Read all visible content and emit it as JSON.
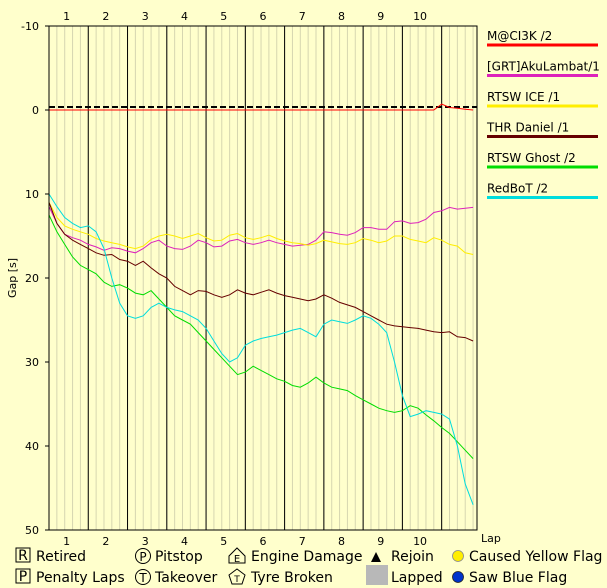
{
  "chart_data": {
    "type": "line",
    "ylabel": "Gap [s]",
    "xlabel": "Lap",
    "ylim": [
      -10,
      50
    ],
    "y_inverted": true,
    "y_ticks": [
      -10,
      0,
      10,
      20,
      30,
      40,
      50
    ],
    "lap_ticks": [
      "1",
      "2",
      "3",
      "4",
      "5",
      "6",
      "7",
      "8",
      "9",
      "10"
    ],
    "xlim": [
      0,
      10.9
    ],
    "grid": true,
    "legend_position": "right",
    "series": [
      {
        "name": "M@CI3K /2",
        "color": "#ff0000",
        "x": [
          0,
          0.3,
          0.5,
          0.7,
          0.9,
          1.0,
          1.2,
          1.4,
          1.6,
          1.8,
          2.0,
          2.2,
          2.4,
          2.6,
          2.8,
          3.0,
          3.2,
          3.4,
          3.6,
          3.8,
          4.0,
          4.2,
          4.4,
          4.6,
          4.8,
          5.0,
          5.2,
          5.4,
          5.6,
          5.8,
          6.0,
          6.2,
          6.4,
          6.6,
          6.8,
          7.0,
          7.2,
          7.4,
          7.6,
          7.8,
          8.0,
          8.2,
          8.4,
          8.6,
          8.8,
          9.0,
          9.2,
          9.4,
          9.6,
          9.8,
          10.0,
          10.2,
          10.4,
          10.6,
          10.8
        ],
        "y": [
          0,
          0,
          0,
          0,
          0,
          0,
          0,
          0,
          0,
          0,
          0,
          0,
          0,
          0,
          0,
          0,
          0,
          0,
          0,
          0,
          0,
          0,
          0,
          0,
          0,
          0,
          0,
          0,
          0,
          0,
          0,
          0,
          0,
          0,
          0,
          0,
          0,
          0,
          0,
          0,
          0,
          0,
          0,
          0,
          0,
          0,
          0,
          0,
          0,
          0,
          -0.7,
          -0.3,
          -0.2,
          -0.1,
          0
        ]
      },
      {
        "name": "[GRT]AkuLambat/1",
        "color": "#dd22bb",
        "x": [
          0,
          0.2,
          0.4,
          0.6,
          0.8,
          1.0,
          1.2,
          1.4,
          1.6,
          1.8,
          2.0,
          2.2,
          2.4,
          2.6,
          2.8,
          3.0,
          3.2,
          3.4,
          3.6,
          3.8,
          4.0,
          4.2,
          4.4,
          4.6,
          4.8,
          5.0,
          5.2,
          5.4,
          5.6,
          5.8,
          6.0,
          6.2,
          6.4,
          6.6,
          6.8,
          7.0,
          7.2,
          7.4,
          7.6,
          7.8,
          8.0,
          8.2,
          8.4,
          8.6,
          8.8,
          9.0,
          9.2,
          9.4,
          9.6,
          9.8,
          10.0,
          10.2,
          10.4,
          10.6,
          10.8
        ],
        "y": [
          11.5,
          13.5,
          14.8,
          15.2,
          15.5,
          16.0,
          16.3,
          16.7,
          16.4,
          16.5,
          16.8,
          17.0,
          16.5,
          15.8,
          15.5,
          16.2,
          16.5,
          16.6,
          16.2,
          15.5,
          15.8,
          16.3,
          16.2,
          15.6,
          15.4,
          15.8,
          16.0,
          15.8,
          15.5,
          15.8,
          16.0,
          16.2,
          16.1,
          16.0,
          15.5,
          14.5,
          14.6,
          14.8,
          14.9,
          14.6,
          14.0,
          14.0,
          14.2,
          14.2,
          13.3,
          13.2,
          13.5,
          13.4,
          13.0,
          12.2,
          12.0,
          11.6,
          11.8,
          11.7,
          11.6
        ]
      },
      {
        "name": "RTSW ICE /1",
        "color": "#ffee00",
        "x": [
          0,
          0.2,
          0.4,
          0.6,
          0.8,
          1.0,
          1.2,
          1.4,
          1.6,
          1.8,
          2.0,
          2.2,
          2.4,
          2.6,
          2.8,
          3.0,
          3.2,
          3.4,
          3.6,
          3.8,
          4.0,
          4.2,
          4.4,
          4.6,
          4.8,
          5.0,
          5.2,
          5.4,
          5.6,
          5.8,
          6.0,
          6.2,
          6.4,
          6.6,
          6.8,
          7.0,
          7.2,
          7.4,
          7.6,
          7.8,
          8.0,
          8.2,
          8.4,
          8.6,
          8.8,
          9.0,
          9.2,
          9.4,
          9.6,
          9.8,
          10.0,
          10.2,
          10.4,
          10.6,
          10.8
        ],
        "y": [
          11.0,
          12.8,
          13.8,
          14.2,
          14.5,
          14.8,
          15.3,
          15.6,
          15.8,
          16.0,
          16.3,
          16.5,
          16.2,
          15.4,
          15.0,
          14.8,
          15.0,
          15.3,
          15.0,
          14.7,
          15.2,
          15.6,
          15.5,
          14.9,
          14.7,
          15.2,
          15.4,
          15.2,
          14.9,
          15.3,
          15.6,
          15.8,
          15.9,
          16.1,
          15.9,
          15.5,
          15.7,
          15.9,
          16.0,
          15.8,
          15.3,
          15.5,
          15.8,
          15.6,
          15.0,
          15.0,
          15.4,
          15.6,
          15.8,
          15.2,
          15.5,
          16.0,
          16.2,
          17.0,
          17.2
        ]
      },
      {
        "name": "THR Daniel /1",
        "color": "#660000",
        "x": [
          0,
          0.2,
          0.4,
          0.6,
          0.8,
          1.0,
          1.2,
          1.4,
          1.6,
          1.8,
          2.0,
          2.2,
          2.4,
          2.6,
          2.8,
          3.0,
          3.2,
          3.4,
          3.6,
          3.8,
          4.0,
          4.2,
          4.4,
          4.6,
          4.8,
          5.0,
          5.2,
          5.4,
          5.6,
          5.8,
          6.0,
          6.2,
          6.4,
          6.6,
          6.8,
          7.0,
          7.2,
          7.4,
          7.6,
          7.8,
          8.0,
          8.2,
          8.4,
          8.6,
          8.8,
          9.0,
          9.2,
          9.4,
          9.6,
          9.8,
          10.0,
          10.2,
          10.4,
          10.6,
          10.8
        ],
        "y": [
          11.0,
          13.5,
          14.8,
          15.5,
          16.0,
          16.5,
          17.0,
          17.3,
          17.2,
          17.8,
          18.0,
          18.5,
          18.0,
          18.8,
          19.5,
          20.0,
          21.0,
          21.5,
          22.0,
          21.5,
          21.6,
          22.0,
          22.3,
          22.0,
          21.4,
          21.8,
          22.0,
          21.7,
          21.4,
          21.8,
          22.1,
          22.3,
          22.5,
          22.7,
          22.5,
          22.0,
          22.4,
          22.9,
          23.2,
          23.5,
          24.0,
          24.5,
          25.0,
          25.5,
          25.7,
          25.8,
          25.9,
          26.0,
          26.2,
          26.4,
          26.5,
          26.4,
          27.0,
          27.1,
          27.5
        ]
      },
      {
        "name": "RTSW Ghost /2",
        "color": "#00dd00",
        "x": [
          0,
          0.2,
          0.4,
          0.6,
          0.8,
          1.0,
          1.2,
          1.4,
          1.6,
          1.8,
          2.0,
          2.2,
          2.4,
          2.6,
          2.8,
          3.0,
          3.2,
          3.4,
          3.6,
          3.8,
          4.0,
          4.2,
          4.4,
          4.6,
          4.8,
          5.0,
          5.2,
          5.4,
          5.6,
          5.8,
          6.0,
          6.2,
          6.4,
          6.6,
          6.8,
          7.0,
          7.2,
          7.4,
          7.6,
          7.8,
          8.0,
          8.2,
          8.4,
          8.6,
          8.8,
          9.0,
          9.2,
          9.4,
          9.6,
          9.8,
          10.0,
          10.2,
          10.4,
          10.6,
          10.8
        ],
        "y": [
          12.5,
          14.5,
          16.0,
          17.5,
          18.5,
          19.0,
          19.5,
          20.5,
          21.0,
          20.8,
          21.2,
          21.8,
          22.0,
          21.5,
          22.5,
          23.5,
          24.5,
          25.0,
          25.5,
          26.5,
          27.5,
          28.5,
          29.5,
          30.5,
          31.5,
          31.2,
          30.5,
          31.0,
          31.5,
          32.0,
          32.3,
          32.8,
          33.0,
          32.5,
          31.8,
          32.5,
          33.0,
          33.2,
          33.4,
          34.0,
          34.5,
          35.0,
          35.5,
          35.8,
          36.0,
          35.8,
          35.2,
          35.5,
          36.3,
          37.0,
          37.8,
          38.5,
          39.5,
          40.5,
          41.5
        ]
      },
      {
        "name": "RedBoT /2",
        "color": "#00dddd",
        "x": [
          0,
          0.2,
          0.4,
          0.6,
          0.8,
          1.0,
          1.2,
          1.4,
          1.6,
          1.8,
          2.0,
          2.2,
          2.4,
          2.6,
          2.8,
          3.0,
          3.2,
          3.4,
          3.6,
          3.8,
          4.0,
          4.2,
          4.4,
          4.6,
          4.8,
          5.0,
          5.2,
          5.4,
          5.6,
          5.8,
          6.0,
          6.2,
          6.4,
          6.6,
          6.8,
          7.0,
          7.2,
          7.4,
          7.6,
          7.8,
          8.0,
          8.2,
          8.4,
          8.6,
          8.8,
          9.0,
          9.2,
          9.4,
          9.6,
          9.8,
          10.0,
          10.2,
          10.4,
          10.6,
          10.8
        ],
        "y": [
          10.0,
          11.5,
          12.8,
          13.5,
          14.0,
          13.8,
          14.5,
          16.5,
          20.0,
          23.0,
          24.5,
          24.8,
          24.5,
          23.5,
          23.0,
          23.5,
          23.8,
          24.0,
          24.5,
          25.0,
          26.0,
          27.5,
          29.0,
          30.0,
          29.5,
          28.0,
          27.5,
          27.2,
          27.0,
          26.8,
          26.5,
          26.2,
          26.0,
          26.5,
          27.0,
          25.5,
          25.0,
          25.2,
          25.4,
          25.0,
          24.5,
          24.8,
          25.5,
          26.5,
          30.0,
          34.0,
          36.5,
          36.2,
          35.8,
          36.0,
          36.2,
          36.8,
          40.0,
          44.5,
          47.0
        ]
      }
    ]
  },
  "legend_key": {
    "retired": {
      "glyph": "R",
      "label": "Retired"
    },
    "penalty": {
      "glyph": "P",
      "label": "Penalty Laps"
    },
    "pitstop": {
      "glyph": "P",
      "label": "Pitstop"
    },
    "takeover": {
      "glyph": "T",
      "label": "Takeover"
    },
    "engine": {
      "glyph": "E",
      "label": "Engine Damage"
    },
    "tyre": {
      "glyph": "T",
      "label": "Tyre Broken"
    },
    "rejoin": {
      "label": "Rejoin"
    },
    "lapped": {
      "label": "Lapped"
    },
    "yellow": {
      "label": "Caused Yellow Flag",
      "color": "#ffee00"
    },
    "blue": {
      "label": "Saw Blue Flag",
      "color": "#0033cc"
    }
  }
}
